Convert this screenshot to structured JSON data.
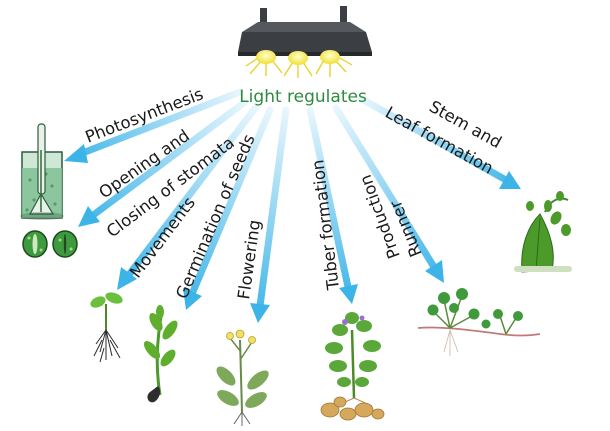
{
  "center_label": "Light regulates",
  "colors": {
    "center_text": "#2e8b3e",
    "arrow_start": "#e8f6fd",
    "arrow_end": "#3cb4e8",
    "lamp_body": "#3b3f43",
    "bulb": "#f8f060",
    "leaf": "#4c9a2a",
    "text": "#1a1a1a"
  },
  "arrows": [
    {
      "id": "photosynthesis",
      "lines": [
        "Photosynthesis"
      ]
    },
    {
      "id": "stomata",
      "lines": [
        "Opening and",
        "Closing of stomata"
      ]
    },
    {
      "id": "movements",
      "lines": [
        "Movements"
      ]
    },
    {
      "id": "germination",
      "lines": [
        "Germination of seeds"
      ]
    },
    {
      "id": "flowering",
      "lines": [
        "Flowering"
      ]
    },
    {
      "id": "tuber",
      "lines": [
        "Tuber formation"
      ]
    },
    {
      "id": "runner",
      "lines": [
        "Runner",
        "Production"
      ]
    },
    {
      "id": "stem-leaf",
      "lines": [
        "Stem and",
        "Leaf formation"
      ]
    }
  ],
  "icons": [
    "lamp-icon",
    "beaker-plant-icon",
    "stomata-icon",
    "seedling-icon",
    "germinating-seed-icon",
    "flowering-plant-icon",
    "potato-plant-icon",
    "runner-plant-icon",
    "leaf-stem-icon"
  ]
}
